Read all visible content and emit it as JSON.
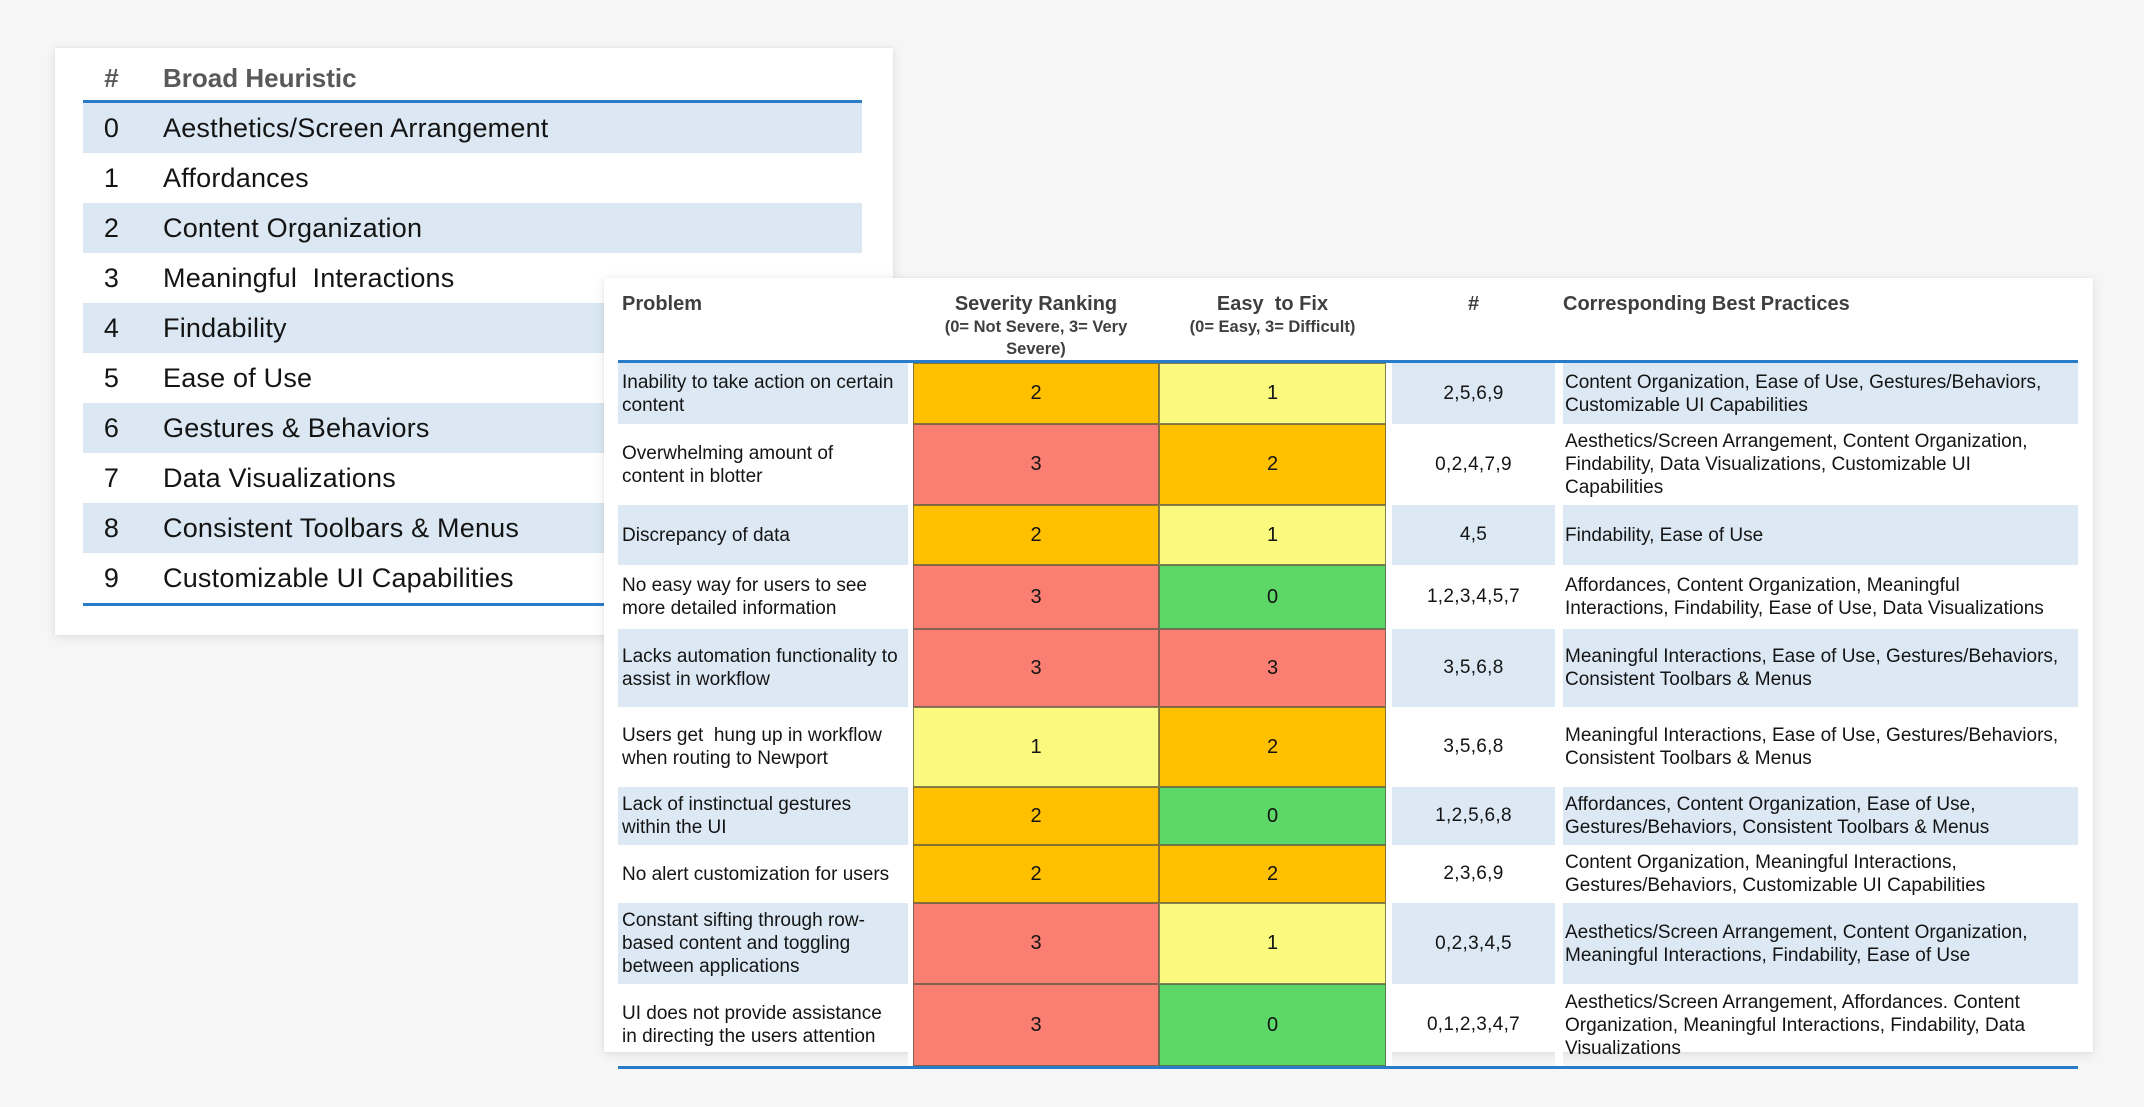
{
  "page": {
    "background_color": "#f6f6f7",
    "accent_line_color": "#2a7bc8",
    "row_highlight_color": "#dce9f4"
  },
  "heuristics": {
    "header": {
      "num": "#",
      "label": "Broad Heuristic"
    },
    "rows": [
      {
        "num": "0",
        "label": "Aesthetics/Screen Arrangement"
      },
      {
        "num": "1",
        "label": "Affordances"
      },
      {
        "num": "2",
        "label": "Content Organization"
      },
      {
        "num": "3",
        "label": "Meaningful  Interactions"
      },
      {
        "num": "4",
        "label": "Findability"
      },
      {
        "num": "5",
        "label": "Ease of Use"
      },
      {
        "num": "6",
        "label": "Gestures & Behaviors"
      },
      {
        "num": "7",
        "label": "Data Visualizations"
      },
      {
        "num": "8",
        "label": "Consistent Toolbars & Menus"
      },
      {
        "num": "9",
        "label": "Customizable UI Capabilities"
      }
    ]
  },
  "problems": {
    "header": {
      "problem": "Problem",
      "severity": "Severity Ranking",
      "severity_sub": "(0= Not Severe, 3= Very Severe)",
      "easy": "Easy  to Fix",
      "easy_sub": "(0= Easy, 3= Difficult)",
      "num": "#",
      "best": "Corresponding Best Practices"
    },
    "value_colors": {
      "0": "#5cd768",
      "1": "#fbf97e",
      "2": "#ffc000",
      "3": "#fa7e72"
    },
    "rows": [
      {
        "problem": "Inability to take action on certain content",
        "severity": "2",
        "easy": "1",
        "nums": "2,5,6,9",
        "best": "Content Organization, Ease of Use, Gestures/Behaviors, Customizable UI Capabilities"
      },
      {
        "problem": "Overwhelming amount of content in blotter",
        "severity": "3",
        "easy": "2",
        "nums": "0,2,4,7,9",
        "best": "Aesthetics/Screen Arrangement, Content Organization, Findability, Data Visualizations, Customizable UI Capabilities"
      },
      {
        "problem": "Discrepancy of data",
        "severity": "2",
        "easy": "1",
        "nums": "4,5",
        "best": "Findability, Ease of Use"
      },
      {
        "problem": "No easy way for users to see more detailed information",
        "severity": "3",
        "easy": "0",
        "nums": "1,2,3,4,5,7",
        "best": "Affordances, Content Organization, Meaningful Interactions, Findability, Ease of Use, Data Visualizations"
      },
      {
        "problem": "Lacks automation functionality to assist in workflow",
        "severity": "3",
        "easy": "3",
        "nums": "3,5,6,8",
        "best": "Meaningful Interactions, Ease of Use, Gestures/Behaviors, Consistent Toolbars & Menus"
      },
      {
        "problem": "Users get  hung up in workflow when routing to Newport",
        "severity": "1",
        "easy": "2",
        "nums": "3,5,6,8",
        "best": "Meaningful Interactions, Ease of Use, Gestures/Behaviors, Consistent Toolbars & Menus"
      },
      {
        "problem": "Lack of instinctual gestures within the UI",
        "severity": "2",
        "easy": "0",
        "nums": "1,2,5,6,8",
        "best": "Affordances, Content Organization, Ease of Use, Gestures/Behaviors, Consistent Toolbars & Menus"
      },
      {
        "problem": "No alert customization for users",
        "severity": "2",
        "easy": "2",
        "nums": "2,3,6,9",
        "best": "Content Organization, Meaningful Interactions, Gestures/Behaviors, Customizable UI Capabilities"
      },
      {
        "problem": "Constant sifting through row-based content and toggling between applications",
        "severity": "3",
        "easy": "1",
        "nums": "0,2,3,4,5",
        "best": "Aesthetics/Screen Arrangement, Content Organization, Meaningful Interactions, Findability, Ease of Use"
      },
      {
        "problem": "UI does not provide assistance in directing the users attention",
        "severity": "3",
        "easy": "0",
        "nums": "0,1,2,3,4,7",
        "best": "Aesthetics/Screen Arrangement, Affordances. Content Organization, Meaningful Interactions, Findability, Data Visualizations"
      }
    ]
  }
}
